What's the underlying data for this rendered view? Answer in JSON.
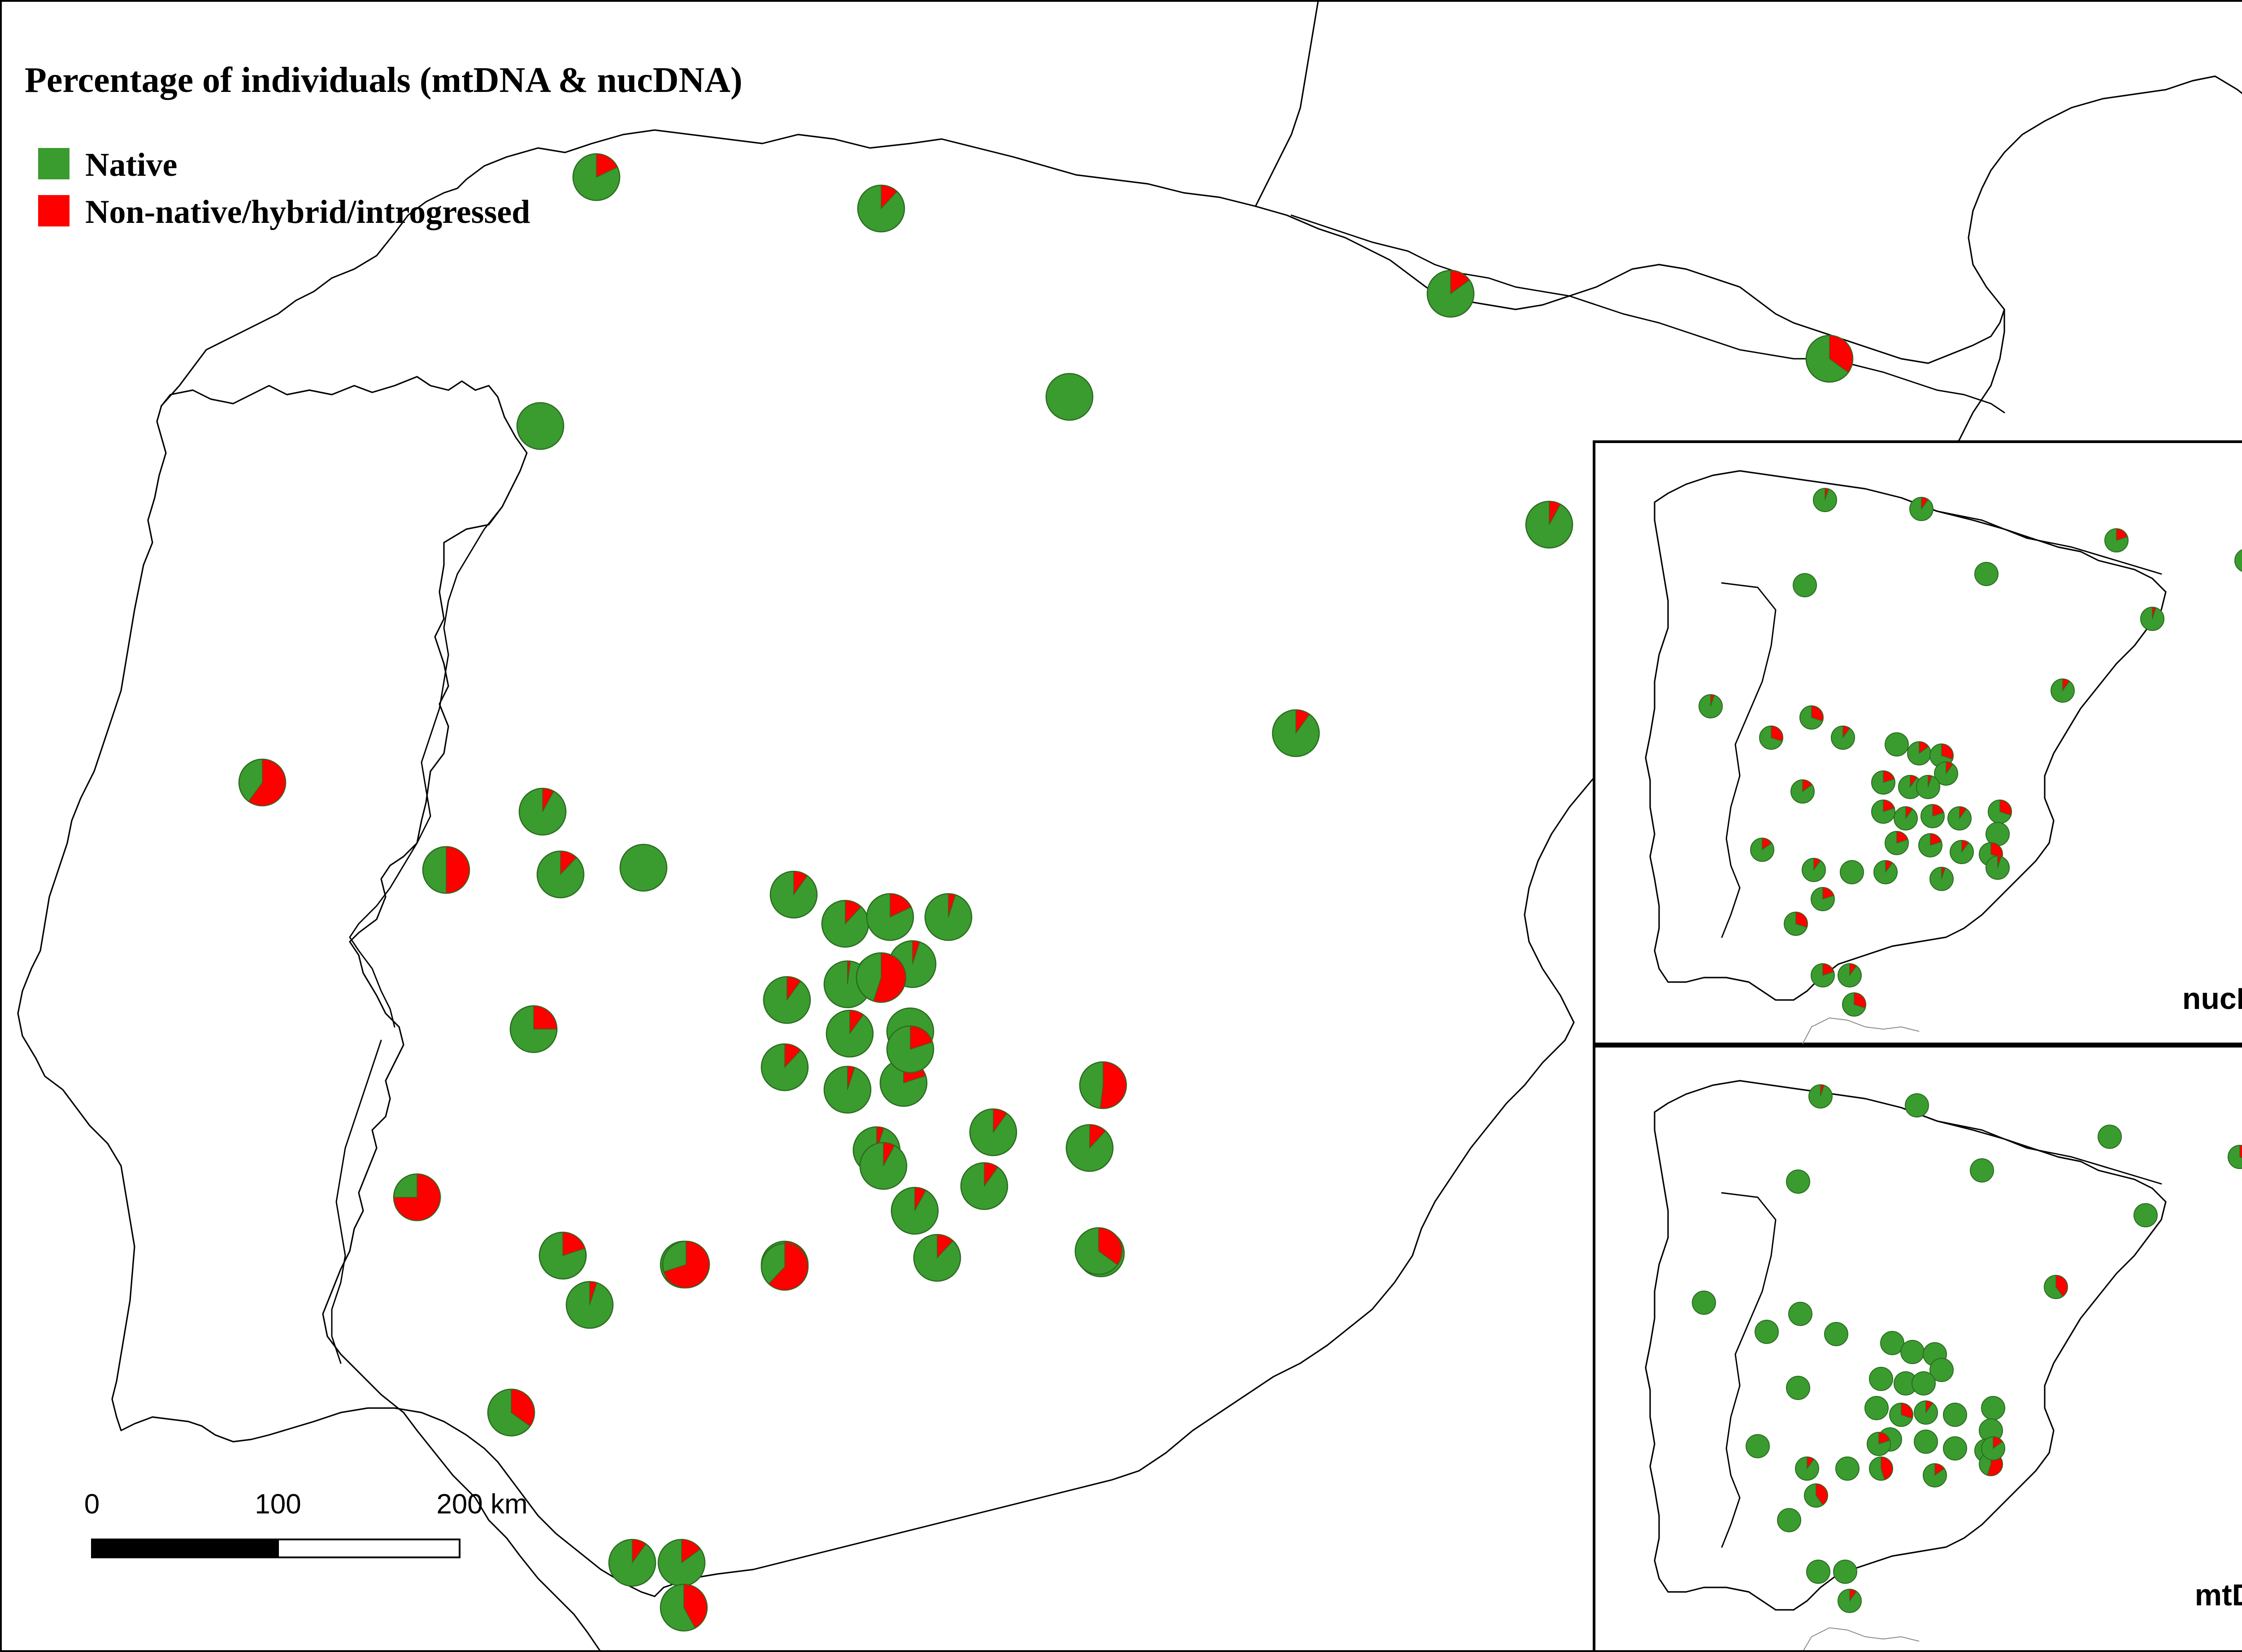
{
  "title": "Percentage of individuals (mtDNA & nucDNA)",
  "legend": [
    {
      "label": "Native",
      "color": "#3a9c2e"
    },
    {
      "label": "Non-native/hybrid/introgressed",
      "color": "#ff0000"
    }
  ],
  "scale_bar": {
    "ticks": [
      "0",
      "100",
      "200 km"
    ]
  },
  "colors": {
    "native": "#3a9c2e",
    "non_native": "#ff0000",
    "pie_stroke": "#2b6b22"
  },
  "insets": [
    {
      "label": "nucDNA"
    },
    {
      "label": "mtDNA"
    }
  ],
  "chart_data": {
    "type": "pie-map",
    "description_series": [
      "Native",
      "Non-native/hybrid/introgressed"
    ],
    "main_map_non_native_fraction": [
      0.18,
      0.12,
      0.15,
      0.35,
      0.0,
      0.0,
      0.08,
      0.6,
      0.1,
      0.08,
      0.5,
      0.0,
      0.12,
      0.1,
      0.12,
      0.18,
      0.05,
      0.1,
      0.55,
      0.02,
      0.05,
      0.25,
      0.0,
      0.1,
      0.52,
      0.12,
      0.2,
      0.05,
      0.1,
      0.05,
      0.12,
      0.08,
      0.1,
      0.06,
      0.75,
      0.2,
      0.65,
      0.25,
      0.12,
      0.05,
      0.7,
      0.62,
      0.18,
      0.35,
      0.1,
      0.15,
      0.42,
      0.08,
      0.2,
      0.35
    ],
    "nucDNA_non_native_fraction": [
      0.05,
      0.1,
      0.2,
      0.3,
      0.0,
      0.0,
      0.05,
      0.1,
      0.05,
      0.3,
      0.3,
      0.1,
      0.0,
      0.15,
      0.3,
      0.1,
      0.2,
      0.1,
      0.05,
      0.15,
      0.2,
      0.1,
      0.2,
      0.1,
      0.3,
      0.0,
      0.2,
      0.2,
      0.1,
      0.3,
      0.15,
      0.1,
      0.0,
      0.1,
      0.05,
      0.05,
      0.2,
      0.3,
      0.2,
      0.1,
      0.3
    ],
    "mtDNA_non_native_fraction": [
      0.05,
      0.0,
      0.0,
      0.3,
      0.0,
      0.0,
      0.0,
      0.4,
      0.0,
      0.0,
      0.0,
      0.0,
      0.0,
      0.0,
      0.0,
      0.0,
      0.0,
      0.0,
      0.0,
      0.0,
      0.0,
      0.3,
      0.1,
      0.0,
      0.0,
      0.0,
      0.0,
      0.0,
      0.0,
      0.0,
      0.0,
      0.1,
      0.0,
      0.45,
      0.15,
      0.55,
      0.4,
      0.0,
      0.0,
      0.0,
      0.1,
      0.15,
      0.2
    ]
  }
}
